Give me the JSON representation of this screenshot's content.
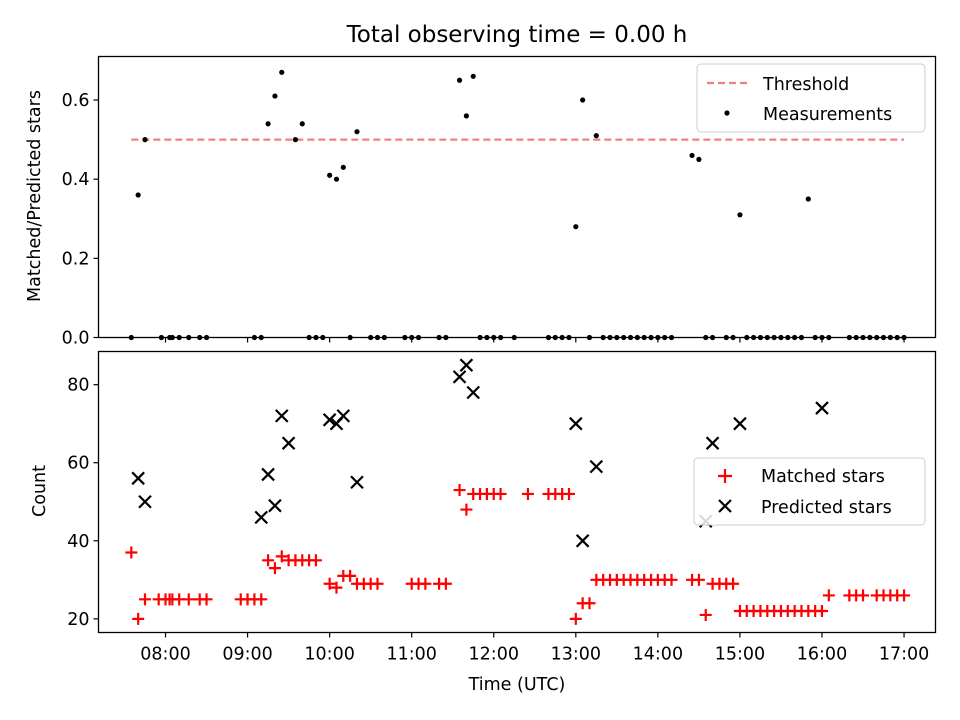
{
  "chart_data": [
    {
      "type": "scatter",
      "title": "Total observing time = 0.00 h",
      "ylabel": "Matched/Predicted stars",
      "xlabel": "",
      "ylim": [
        0,
        0.71
      ],
      "xlim": [
        "07:11",
        "17:23"
      ],
      "yticks": [
        "0.0",
        "0.2",
        "0.4",
        "0.6"
      ],
      "ytick_values": [
        0,
        0.2,
        0.4,
        0.6
      ],
      "xticks": [
        "08:00",
        "09:00",
        "10:00",
        "11:00",
        "12:00",
        "13:00",
        "14:00",
        "15:00",
        "16:00",
        "17:00"
      ],
      "show_xtick_labels": false,
      "legend": {
        "placement": "top-right",
        "entries": [
          "Threshold",
          "Measurements"
        ]
      },
      "grid": false,
      "threshold": {
        "name": "Threshold",
        "value": 0.5,
        "x_range": [
          "07:35",
          "17:00"
        ],
        "color": "#f08080",
        "style": "dashed"
      },
      "series": [
        {
          "name": "Measurements",
          "marker": "dot",
          "color": "#000000",
          "x": [
            "07:35",
            "07:40",
            "07:45",
            "07:57",
            "08:03",
            "08:05",
            "08:10",
            "08:17",
            "08:25",
            "08:30",
            "09:05",
            "09:10",
            "09:15",
            "09:20",
            "09:25",
            "09:35",
            "09:40",
            "09:45",
            "09:50",
            "09:55",
            "10:00",
            "10:05",
            "10:10",
            "10:15",
            "10:20",
            "10:30",
            "10:35",
            "10:40",
            "10:55",
            "11:00",
            "11:05",
            "11:20",
            "11:25",
            "11:35",
            "11:40",
            "11:45",
            "11:50",
            "11:55",
            "12:00",
            "12:05",
            "12:15",
            "12:40",
            "12:45",
            "12:50",
            "12:55",
            "13:00",
            "13:05",
            "13:10",
            "13:15",
            "13:20",
            "13:25",
            "13:30",
            "13:35",
            "13:40",
            "13:45",
            "13:50",
            "13:55",
            "14:00",
            "14:05",
            "14:10",
            "14:25",
            "14:30",
            "14:35",
            "14:40",
            "14:50",
            "14:55",
            "15:00",
            "15:05",
            "15:10",
            "15:15",
            "15:20",
            "15:25",
            "15:30",
            "15:35",
            "15:40",
            "15:45",
            "15:50",
            "15:55",
            "16:00",
            "16:05",
            "16:20",
            "16:25",
            "16:30",
            "16:35",
            "16:40",
            "16:45",
            "16:50",
            "16:55",
            "17:00"
          ],
          "y": [
            0,
            0.36,
            0.5,
            0,
            0,
            0,
            0,
            0,
            0,
            0,
            0,
            0,
            0.54,
            0.61,
            0.67,
            0.5,
            0.54,
            0,
            0,
            0,
            0.41,
            0.4,
            0.43,
            0,
            0.52,
            0,
            0,
            0,
            0,
            0,
            0,
            0,
            0,
            0.65,
            0.56,
            0.66,
            0,
            0,
            0,
            0,
            0,
            0,
            0,
            0,
            0,
            0.28,
            0.6,
            0,
            0.51,
            0,
            0,
            0,
            0,
            0,
            0,
            0,
            0,
            0,
            0,
            0,
            0.46,
            0.45,
            0,
            0,
            0,
            0,
            0.31,
            0,
            0,
            0,
            0,
            0,
            0,
            0,
            0,
            0,
            0.35,
            0,
            0,
            0,
            0,
            0,
            0,
            0,
            0,
            0,
            0,
            0,
            0
          ]
        }
      ]
    },
    {
      "type": "scatter",
      "title": "",
      "ylabel": "Count",
      "xlabel": "Time (UTC)",
      "ylim": [
        16.5,
        88.5
      ],
      "xlim": [
        "07:11",
        "17:23"
      ],
      "yticks": [
        "20",
        "40",
        "60",
        "80"
      ],
      "ytick_values": [
        20,
        40,
        60,
        80
      ],
      "xticks": [
        "08:00",
        "09:00",
        "10:00",
        "11:00",
        "12:00",
        "13:00",
        "14:00",
        "15:00",
        "16:00",
        "17:00"
      ],
      "show_xtick_labels": true,
      "legend": {
        "placement": "center-right",
        "entries": [
          "Matched stars",
          "Predicted stars"
        ]
      },
      "grid": false,
      "series": [
        {
          "name": "Matched stars",
          "marker": "plus",
          "color": "#ff0000",
          "x": [
            "07:35",
            "07:40",
            "07:45",
            "07:55",
            "08:00",
            "08:03",
            "08:05",
            "08:10",
            "08:17",
            "08:25",
            "08:30",
            "08:55",
            "09:00",
            "09:05",
            "09:10",
            "09:15",
            "09:20",
            "09:25",
            "09:30",
            "09:35",
            "09:40",
            "09:45",
            "09:50",
            "10:00",
            "10:05",
            "10:10",
            "10:15",
            "10:20",
            "10:25",
            "10:30",
            "10:35",
            "11:00",
            "11:05",
            "11:10",
            "11:20",
            "11:25",
            "11:35",
            "11:40",
            "11:45",
            "11:50",
            "11:55",
            "12:00",
            "12:05",
            "12:25",
            "12:40",
            "12:45",
            "12:50",
            "12:55",
            "13:00",
            "13:05",
            "13:10",
            "13:15",
            "13:20",
            "13:25",
            "13:30",
            "13:35",
            "13:40",
            "13:45",
            "13:50",
            "13:55",
            "14:00",
            "14:05",
            "14:10",
            "14:25",
            "14:30",
            "14:35",
            "14:40",
            "14:45",
            "14:50",
            "14:55",
            "15:00",
            "15:05",
            "15:10",
            "15:15",
            "15:20",
            "15:25",
            "15:30",
            "15:35",
            "15:40",
            "15:45",
            "15:50",
            "15:55",
            "16:00",
            "16:05",
            "16:20",
            "16:25",
            "16:30",
            "16:40",
            "16:45",
            "16:50",
            "16:55",
            "17:00"
          ],
          "y": [
            37,
            20,
            25,
            25,
            25,
            25,
            25,
            25,
            25,
            25,
            25,
            25,
            25,
            25,
            25,
            35,
            33,
            36,
            35,
            35,
            35,
            35,
            35,
            29,
            28,
            31,
            31,
            29,
            29,
            29,
            29,
            29,
            29,
            29,
            29,
            29,
            53,
            48,
            52,
            52,
            52,
            52,
            52,
            52,
            52,
            52,
            52,
            52,
            20,
            24,
            24,
            30,
            30,
            30,
            30,
            30,
            30,
            30,
            30,
            30,
            30,
            30,
            30,
            30,
            30,
            21,
            29,
            29,
            29,
            29,
            22,
            22,
            22,
            22,
            22,
            22,
            22,
            22,
            22,
            22,
            22,
            22,
            22,
            26,
            26,
            26,
            26,
            26,
            26,
            26,
            26,
            26
          ]
        },
        {
          "name": "Predicted stars",
          "marker": "x",
          "color": "#000000",
          "x": [
            "07:40",
            "07:45",
            "09:10",
            "09:15",
            "09:20",
            "09:25",
            "09:30",
            "10:00",
            "10:05",
            "10:10",
            "10:20",
            "11:35",
            "11:40",
            "11:45",
            "13:00",
            "13:05",
            "13:15",
            "14:35",
            "14:40",
            "15:00",
            "16:00"
          ],
          "y": [
            56,
            50,
            46,
            57,
            49,
            72,
            65,
            71,
            70,
            72,
            55,
            82,
            85,
            78,
            70,
            40,
            59,
            45,
            65,
            70,
            74
          ]
        }
      ]
    }
  ]
}
